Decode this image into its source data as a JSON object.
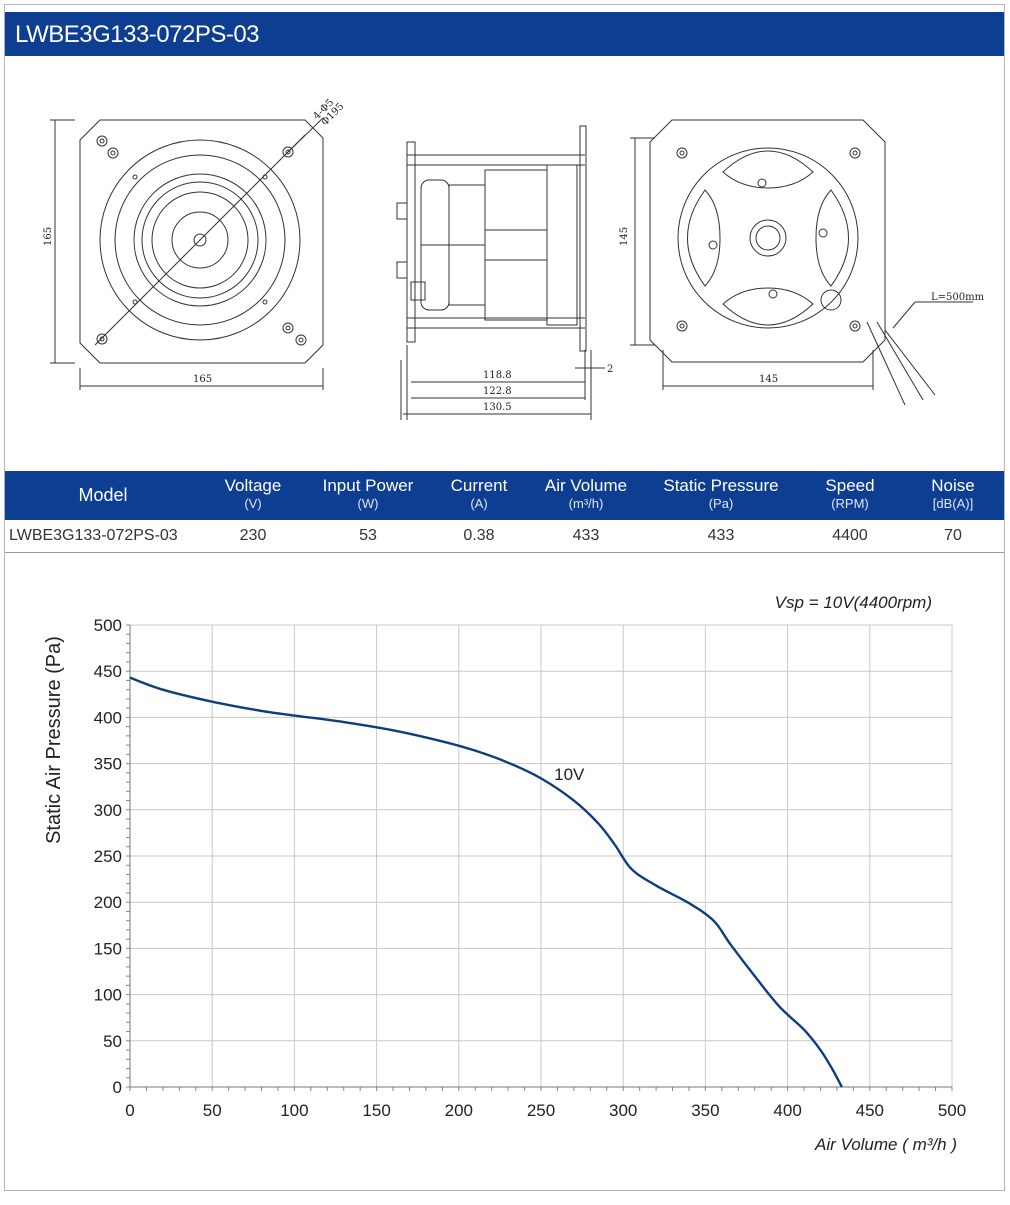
{
  "header": {
    "title": "LWBE3G133-072PS-03"
  },
  "drawing": {
    "front": {
      "height_dim": "165",
      "width_dim": "165",
      "hole_note_1": "4-Φ5",
      "hole_note_2": "Φ195"
    },
    "side": {
      "dim_1": "118.8",
      "dim_2": "122.8",
      "dim_3": "130.5",
      "dim_gap": "2"
    },
    "back": {
      "height_dim": "145",
      "width_dim": "145",
      "cable_note": "L=500mm"
    }
  },
  "spec_table": {
    "headers": [
      {
        "label": "Model",
        "unit": ""
      },
      {
        "label": "Voltage",
        "unit": "(V)"
      },
      {
        "label": "Input Power",
        "unit": "(W)"
      },
      {
        "label": "Current",
        "unit": "(A)"
      },
      {
        "label": "Air Volume",
        "unit": "(m³/h)"
      },
      {
        "label": "Static Pressure",
        "unit": "(Pa)"
      },
      {
        "label": "Speed",
        "unit": "(RPM)"
      },
      {
        "label": "Noise",
        "unit": "[dB(A)]"
      }
    ],
    "row": [
      "LWBE3G133-072PS-03",
      "230",
      "53",
      "0.38",
      "433",
      "433",
      "4400",
      "70"
    ]
  },
  "chart_data": {
    "type": "line",
    "annotation": "Vsp = 10V(4400rpm)",
    "xlabel": "Air Volume ( m³/h )",
    "ylabel": "Static Air Pressure  (Pa)",
    "xlim": [
      0,
      500
    ],
    "ylim": [
      0,
      500
    ],
    "x_ticks": [
      "0",
      "50",
      "100",
      "150",
      "200",
      "250",
      "300",
      "350",
      "400",
      "450",
      "500"
    ],
    "y_ticks": [
      "0",
      "50",
      "100",
      "150",
      "200",
      "250",
      "300",
      "350",
      "400",
      "450",
      "500"
    ],
    "grid": true,
    "line_color": "#0e3e7e",
    "series": [
      {
        "name": "10V",
        "x": [
          0,
          20,
          50,
          80,
          100,
          130,
          160,
          190,
          210,
          230,
          250,
          270,
          285,
          295,
          305,
          320,
          340,
          355,
          365,
          380,
          395,
          410,
          420,
          427,
          433
        ],
        "y": [
          443,
          430,
          417,
          407,
          402,
          395,
          386,
          374,
          364,
          351,
          334,
          310,
          285,
          262,
          236,
          218,
          199,
          180,
          155,
          120,
          87,
          62,
          40,
          20,
          0
        ]
      }
    ]
  }
}
